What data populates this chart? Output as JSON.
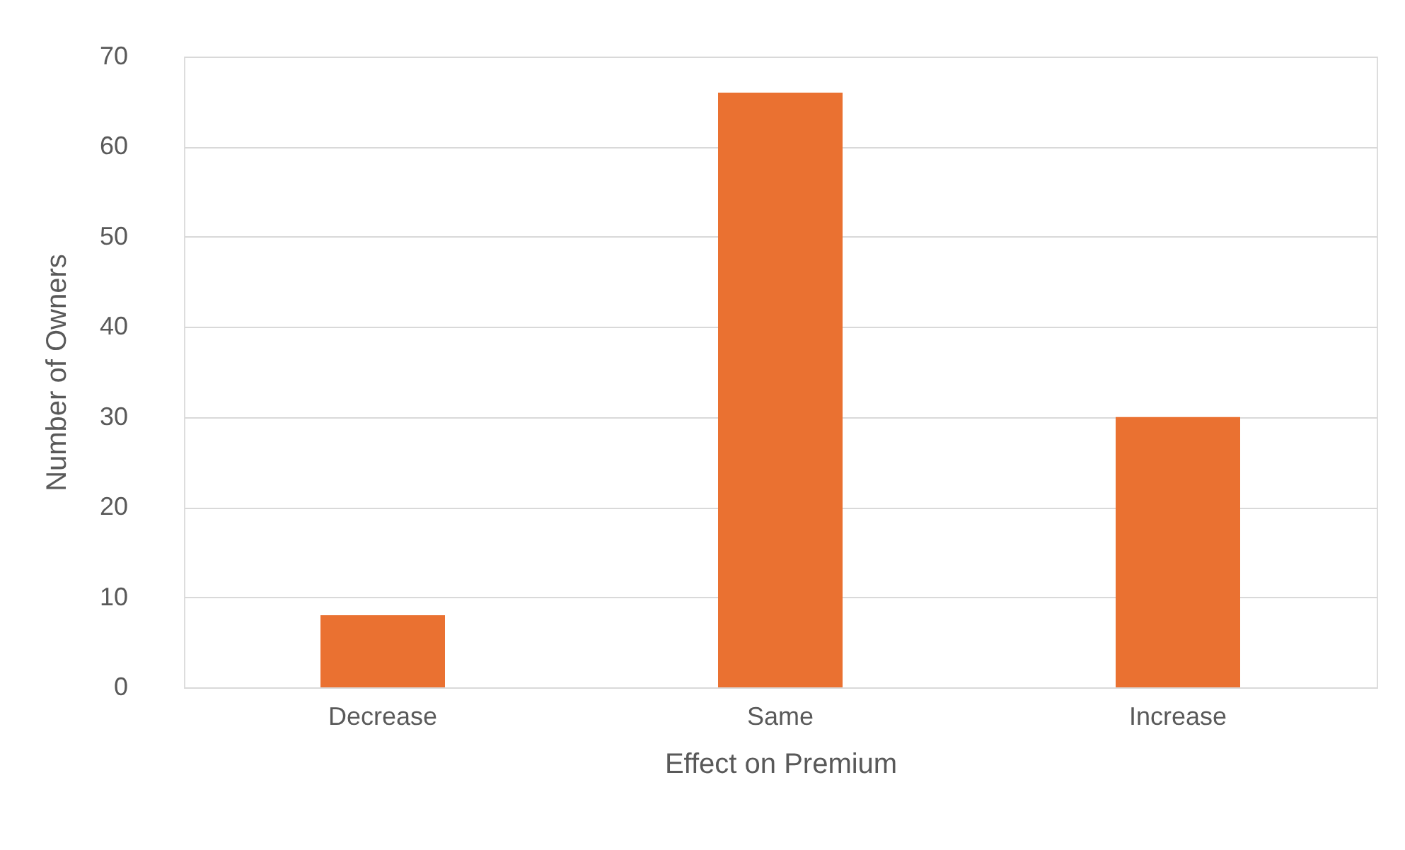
{
  "chart_data": {
    "type": "bar",
    "xlabel": "Effect on Premium",
    "ylabel": "Number of Owners",
    "categories": [
      "Decrease",
      "Same",
      "Increase"
    ],
    "values": [
      8,
      66,
      30
    ],
    "color": "#ea7131",
    "ylim": [
      0,
      70
    ],
    "yticks": [
      0,
      10,
      20,
      30,
      40,
      50,
      60,
      70
    ],
    "grid": "y"
  }
}
